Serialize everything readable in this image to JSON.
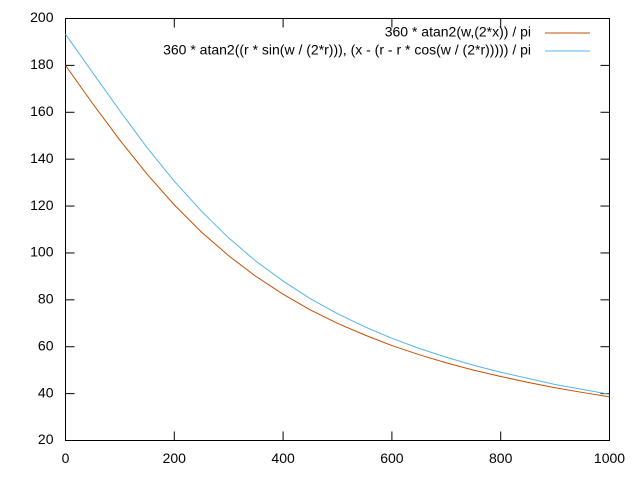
{
  "chart_data": {
    "type": "line",
    "x": [
      0,
      50,
      100,
      150,
      200,
      250,
      300,
      350,
      400,
      450,
      500,
      550,
      600,
      650,
      700,
      750,
      800,
      850,
      900,
      950,
      1000
    ],
    "series": [
      {
        "name": "360 * atan2(w,(2*x)) / pi",
        "color": "#c84f00",
        "values": [
          180,
          163.7,
          148.1,
          133.6,
          120.5,
          108.9,
          98.8,
          90.0,
          82.4,
          75.7,
          70.0,
          65.0,
          60.5,
          56.6,
          53.1,
          50.0,
          47.3,
          44.8,
          42.5,
          40.5,
          38.6
        ]
      },
      {
        "name": "360 * atan2((r * sin(w / (2*r))), (x - (r - r * cos(w / (2*r))))) / pi",
        "color": "#56b4e9",
        "values": [
          193.3,
          176.9,
          160.6,
          144.9,
          130.6,
          117.8,
          106.4,
          96.5,
          88.0,
          80.5,
          74.1,
          68.5,
          63.6,
          59.3,
          55.5,
          52.1,
          49.1,
          46.5,
          43.9,
          41.8,
          39.7
        ]
      }
    ],
    "xlim": [
      0,
      1000
    ],
    "xticks": [
      0,
      200,
      400,
      600,
      800,
      1000
    ],
    "ylim": [
      20,
      200
    ],
    "yticks": [
      20,
      40,
      60,
      80,
      100,
      120,
      140,
      160,
      180,
      200
    ],
    "legend": "top-right"
  }
}
